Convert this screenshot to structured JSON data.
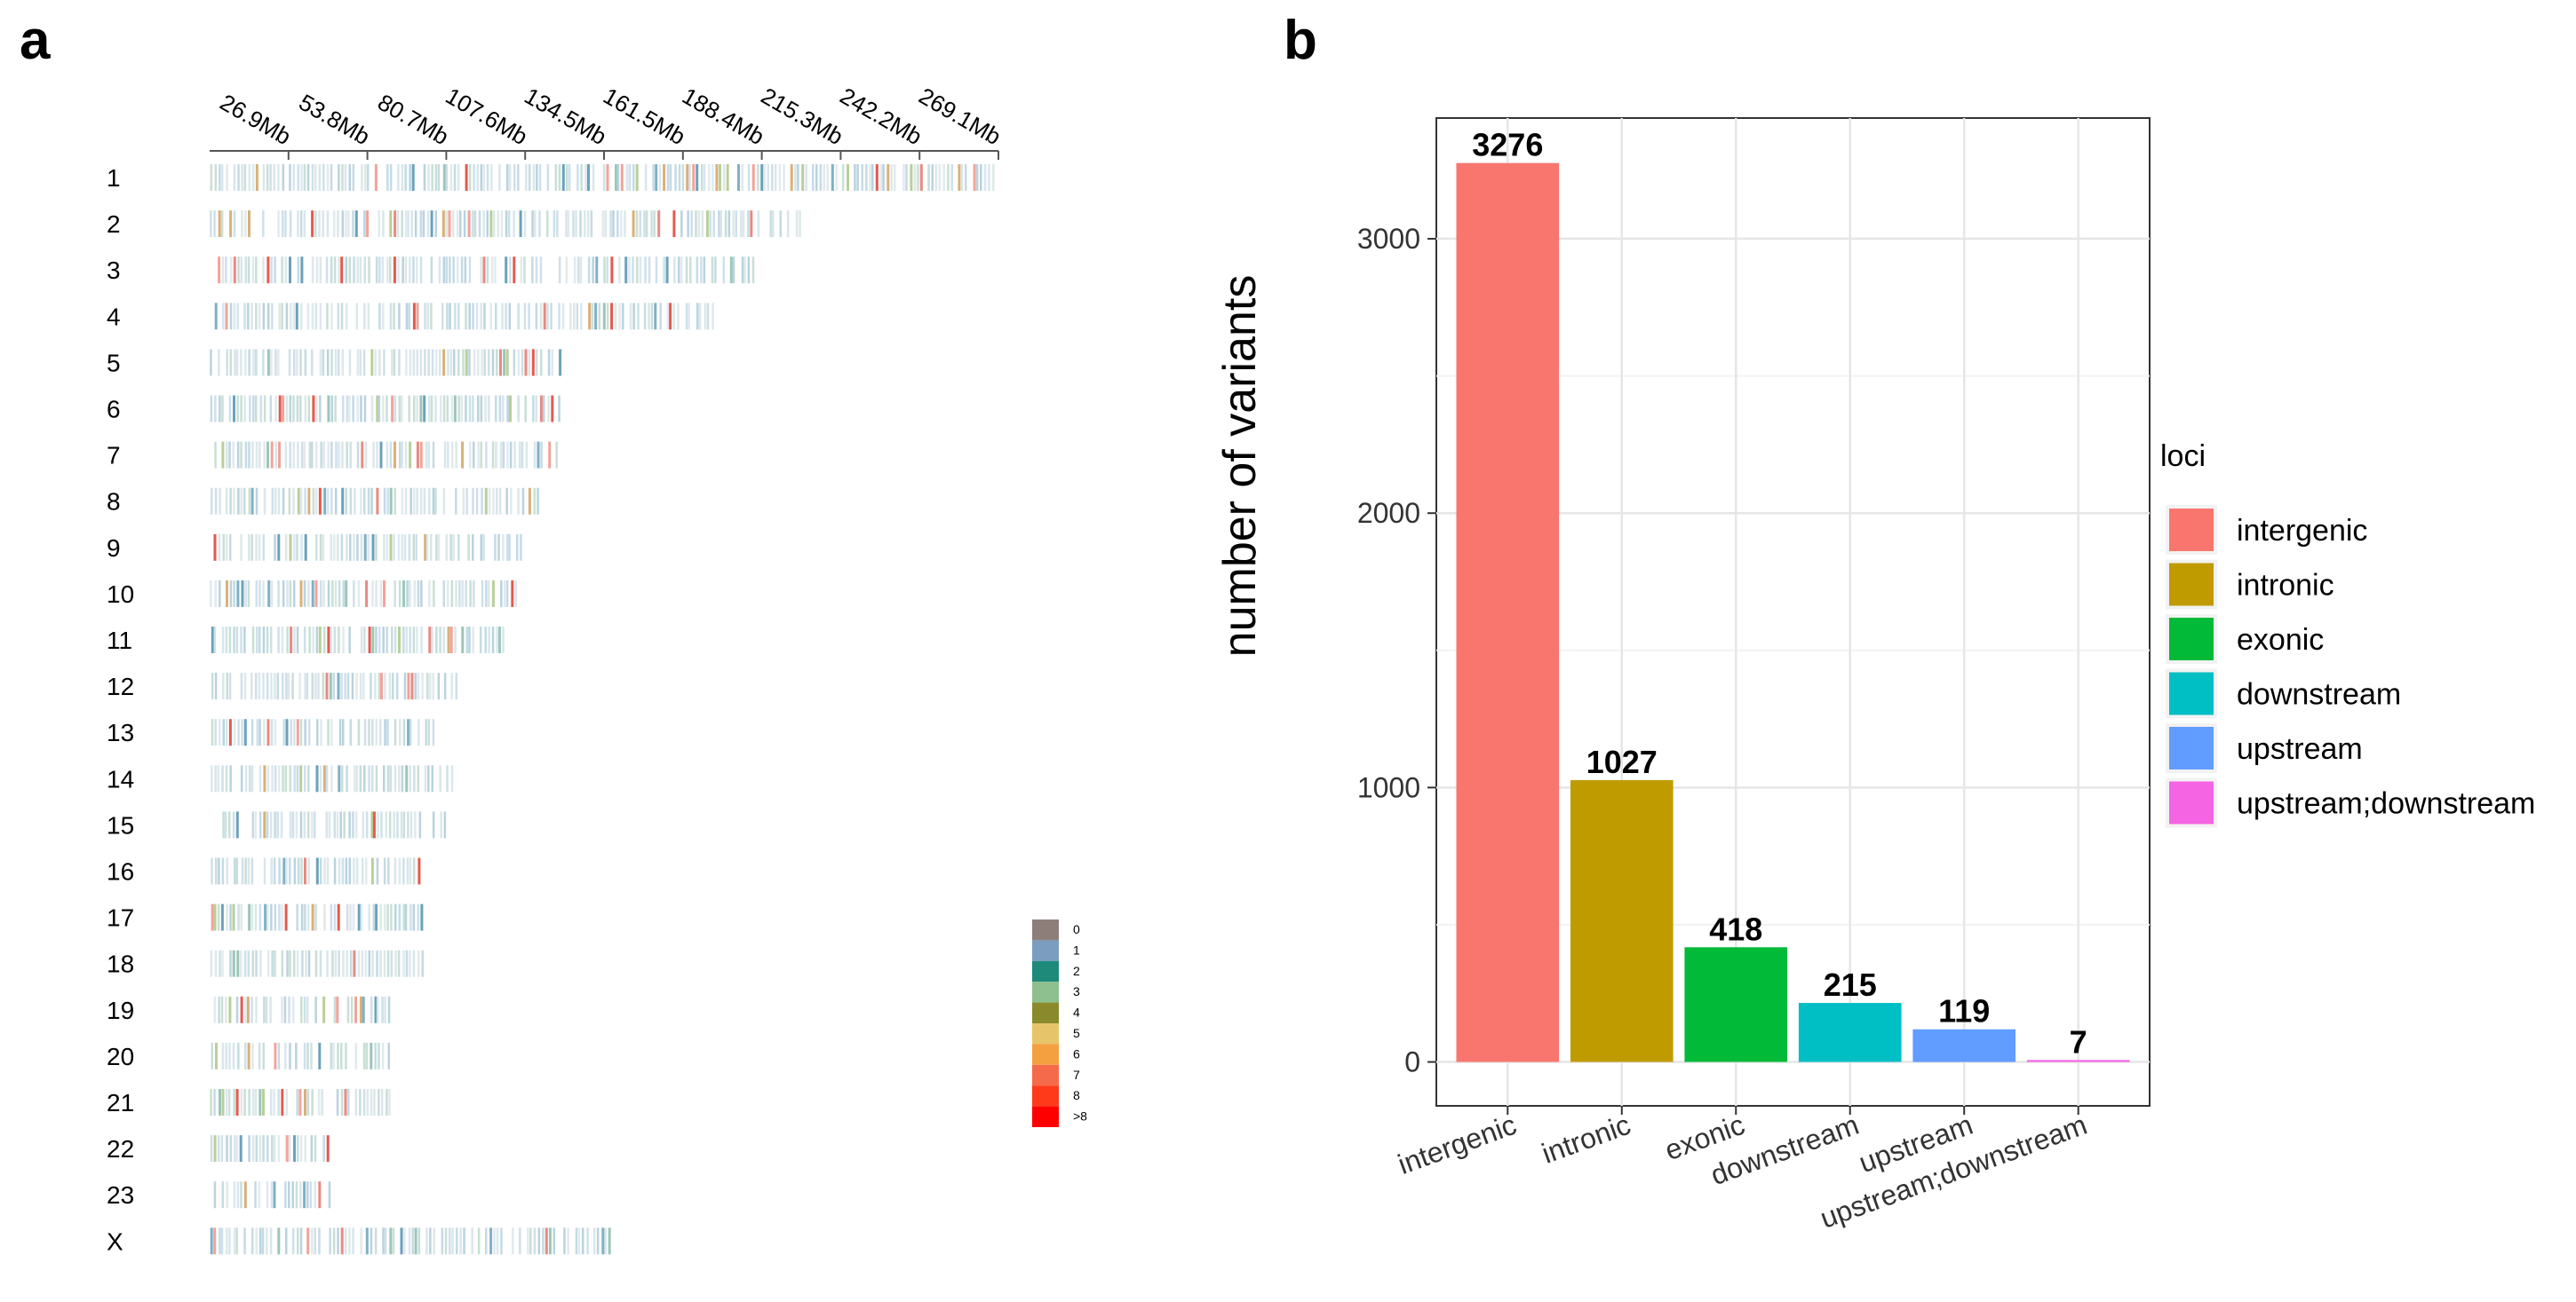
{
  "panels": {
    "a": "a",
    "b": "b"
  },
  "chart_data": [
    {
      "type": "heatmap",
      "panel": "a",
      "title": "",
      "x_ticks": [
        "26.9Mb",
        "53.8Mb",
        "80.7Mb",
        "107.6Mb",
        "134.5Mb",
        "161.5Mb",
        "188.4Mb",
        "215.3Mb",
        "242.2Mb",
        "269.1Mb"
      ],
      "x_range_mb": [
        0,
        269.1
      ],
      "chromosomes": [
        "1",
        "2",
        "3",
        "4",
        "5",
        "6",
        "7",
        "8",
        "9",
        "10",
        "11",
        "12",
        "13",
        "14",
        "15",
        "16",
        "17",
        "18",
        "19",
        "20",
        "21",
        "22",
        "23",
        "X"
      ],
      "chromosome_length_mb": [
        269,
        202,
        186,
        172,
        120,
        120,
        119,
        115,
        107,
        105,
        101,
        86,
        77,
        83,
        81,
        73,
        73,
        73,
        62,
        62,
        62,
        42,
        43,
        137
      ],
      "legend": {
        "labels": [
          "0",
          "1",
          "2",
          "3",
          "4",
          "5",
          "6",
          "7",
          "8",
          ">8"
        ],
        "colors": [
          "#8e7e7a",
          "#7a9dc0",
          "#1e8a7a",
          "#8dbf8f",
          "#8a8a2c",
          "#e6c46a",
          "#f5a040",
          "#f56a4a",
          "#ff3a1a",
          "#ff0000"
        ]
      }
    },
    {
      "type": "bar",
      "panel": "b",
      "categories": [
        "intergenic",
        "intronic",
        "exonic",
        "downstream",
        "upstream",
        "upstream;downstream"
      ],
      "values": [
        3276,
        1027,
        418,
        215,
        119,
        7
      ],
      "value_labels": [
        "3276",
        "1027",
        "418",
        "215",
        "119",
        "7"
      ],
      "colors": [
        "#f8766d",
        "#c09b00",
        "#00ba38",
        "#00bfc4",
        "#619cff",
        "#f564e3"
      ],
      "ylabel": "number of variants",
      "xlabel": "",
      "ylim": [
        -160,
        3440
      ],
      "y_ticks": [
        0,
        1000,
        2000,
        3000
      ],
      "y_tick_labels": [
        "0",
        "1000",
        "2000",
        "3000"
      ],
      "legend": {
        "title": "loci",
        "position": "right",
        "entries": [
          "intergenic",
          "intronic",
          "exonic",
          "downstream",
          "upstream",
          "upstream;downstream"
        ]
      }
    }
  ]
}
